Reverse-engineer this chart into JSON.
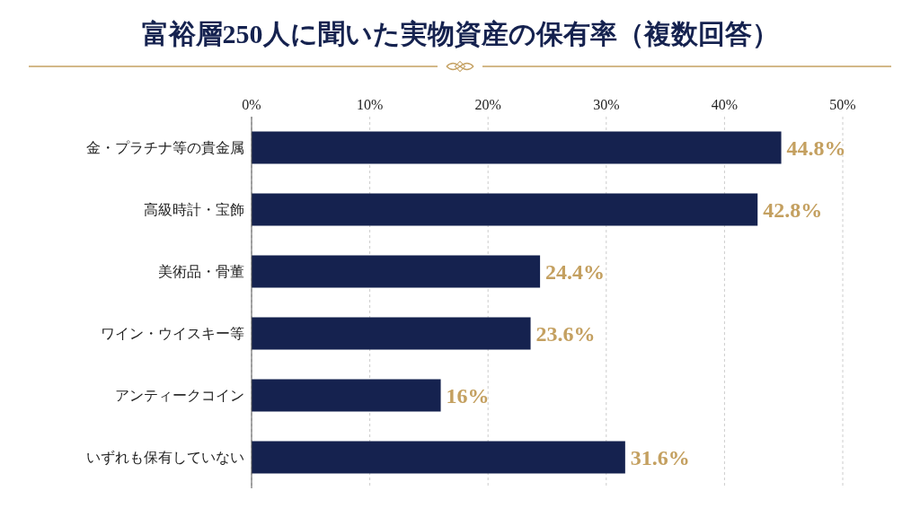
{
  "chart_data": {
    "type": "bar",
    "orientation": "horizontal",
    "title": "富裕層250人に聞いた実物資産の保有率（複数回答）",
    "categories": [
      "金・プラチナ等の貴金属",
      "高級時計・宝飾",
      "美術品・骨董",
      "ワイン・ウイスキー等",
      "アンティークコイン",
      "いずれも保有していない"
    ],
    "values": [
      44.8,
      42.8,
      24.4,
      23.6,
      16,
      31.6
    ],
    "value_labels": [
      "44.8%",
      "42.8%",
      "24.4%",
      "23.6%",
      "16%",
      "31.6%"
    ],
    "color": "#15224f",
    "xlim": [
      0,
      50
    ],
    "xticks": [
      {
        "value": 0,
        "label": "0%"
      },
      {
        "value": 10,
        "label": "10%"
      },
      {
        "value": 20,
        "label": "20%"
      },
      {
        "value": 30,
        "label": "30%"
      },
      {
        "value": 40,
        "label": "40%"
      },
      {
        "value": 50,
        "label": "50%"
      }
    ],
    "grid": "x",
    "legend": false
  }
}
